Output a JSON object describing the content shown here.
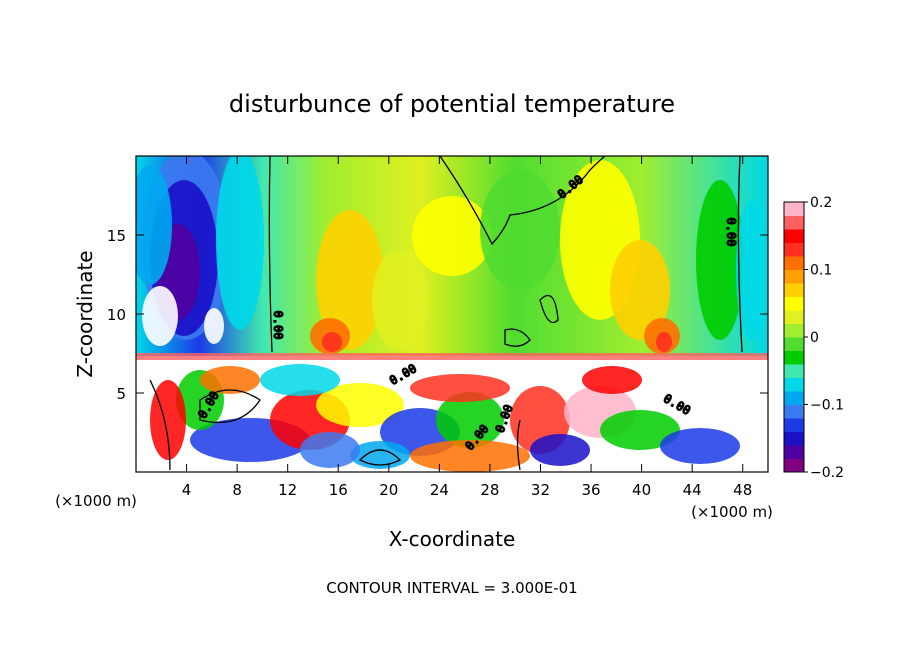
{
  "chart_data": {
    "type": "heatmap",
    "title": "disturbunce of potential temperature",
    "xlabel": "X-coordinate",
    "ylabel": "Z-coordinate",
    "x_unit_label": "(×1000 m)",
    "x_unit_label_right": "(×1000 m)",
    "footer": "CONTOUR INTERVAL = 3.000E-01",
    "xlim": [
      0,
      50
    ],
    "ylim": [
      0,
      20
    ],
    "xticks": [
      "4",
      "8",
      "12",
      "16",
      "20",
      "24",
      "28",
      "32",
      "36",
      "40",
      "44",
      "48"
    ],
    "yticks": [
      "5",
      "10",
      "15"
    ],
    "colorbar": {
      "range": [
        -0.2,
        0.2
      ],
      "tick_labels": [
        "0.2",
        "0.1",
        "0",
        "−0.1",
        "−0.2"
      ],
      "colors": [
        "#800080",
        "#5000a0",
        "#1a10c8",
        "#1c3ae8",
        "#3c7af0",
        "#00a8f0",
        "#00d8e8",
        "#40e8b0",
        "#00cc00",
        "#50dc30",
        "#a0ee30",
        "#e0f020",
        "#ffff00",
        "#ffd000",
        "#ffa000",
        "#ff7000",
        "#ff3020",
        "#ff0000",
        "#ff6060",
        "#ffb4c8"
      ]
    },
    "contour_labels": [
      "0.00",
      "0.00",
      "0.00",
      "0.00",
      "0.00",
      "0.00",
      "0.00",
      "0.00"
    ],
    "contour_interval": 0.3
  }
}
